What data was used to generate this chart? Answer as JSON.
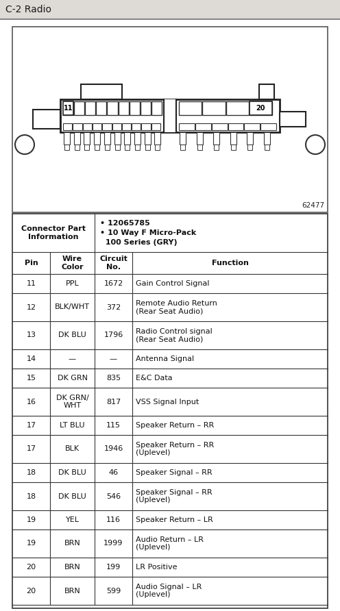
{
  "title": "C-2 Radio",
  "title_bg": "#dedad5",
  "body_bg": "#f5f5f5",
  "page_bg": "#ffffff",
  "connector_info_line1": "• 12065785",
  "connector_info_line2": "• 10 Way F Micro-Pack",
  "connector_info_line3": "  100 Series (GRY)",
  "diagram_label": "62477",
  "header_row": [
    "Pin",
    "Wire\nColor",
    "Circuit\nNo.",
    "Function"
  ],
  "rows": [
    [
      "11",
      "PPL",
      "1672",
      "Gain Control Signal"
    ],
    [
      "12",
      "BLK/WHT",
      "372",
      "Remote Audio Return\n(Rear Seat Audio)"
    ],
    [
      "13",
      "DK BLU",
      "1796",
      "Radio Control signal\n(Rear Seat Audio)"
    ],
    [
      "14",
      "—",
      "—",
      "Antenna Signal"
    ],
    [
      "15",
      "DK GRN",
      "835",
      "E&C Data"
    ],
    [
      "16",
      "DK GRN/\nWHT",
      "817",
      "VSS Signal Input"
    ],
    [
      "17",
      "LT BLU",
      "115",
      "Speaker Return – RR"
    ],
    [
      "17",
      "BLK",
      "1946",
      "Speaker Return – RR\n(Uplevel)"
    ],
    [
      "18",
      "DK BLU",
      "46",
      "Speaker Signal – RR"
    ],
    [
      "18",
      "DK BLU",
      "546",
      "Speaker Signal – RR\n(Uplevel)"
    ],
    [
      "19",
      "YEL",
      "116",
      "Speaker Return – LR"
    ],
    [
      "19",
      "BRN",
      "1999",
      "Audio Return – LR\n(Uplevel)"
    ],
    [
      "20",
      "BRN",
      "199",
      "LR Positive"
    ],
    [
      "20",
      "BRN",
      "599",
      "Audio Signal – LR\n(Uplevel)"
    ]
  ]
}
